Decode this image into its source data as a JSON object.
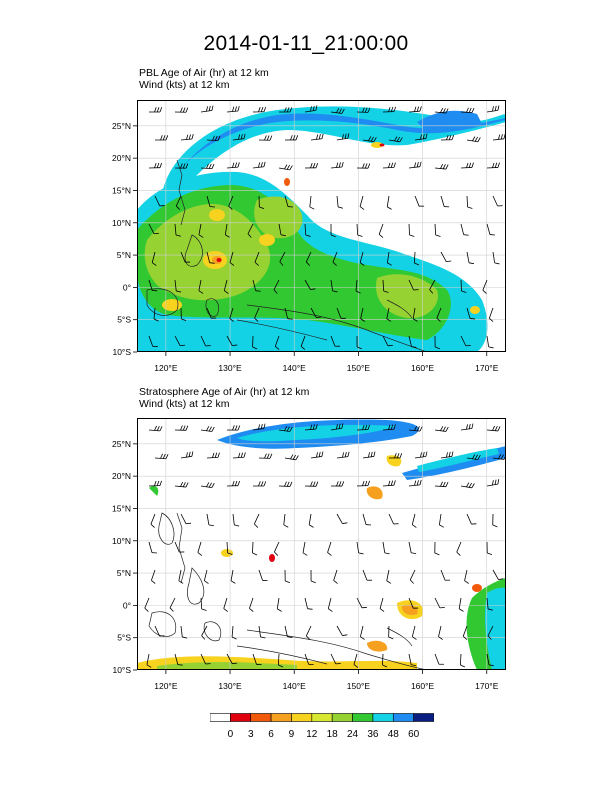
{
  "main_title": "2014-01-11_21:00:00",
  "panels": [
    {
      "id": "pbl",
      "title_line1": "PBL Age of Air   (hr)     at  12 km",
      "title_line2": "Wind   (kts)     at  12 km"
    },
    {
      "id": "strat",
      "title_line1": "Stratosphere Age of Air   (hr)     at  12 km",
      "title_line2": "Wind   (kts)     at  12 km"
    }
  ],
  "map": {
    "lon_ticks": [
      "120°E",
      "130°E",
      "140°E",
      "150°E",
      "160°E",
      "170°E"
    ],
    "lon_values": [
      120,
      130,
      140,
      150,
      160,
      170
    ],
    "lat_ticks": [
      "25°N",
      "20°N",
      "15°N",
      "10°N",
      "5°N",
      "0°",
      "5°S",
      "10°S"
    ],
    "lat_values": [
      25,
      20,
      15,
      10,
      5,
      0,
      -5,
      -10
    ],
    "lon_range": [
      115.5,
      173
    ],
    "lat_range": [
      -10,
      29
    ]
  },
  "colorbar": {
    "labels": [
      "0",
      "3",
      "6",
      "9",
      "12",
      "18",
      "24",
      "36",
      "48",
      "60"
    ],
    "colors": [
      "#ffffff",
      "#e0000f",
      "#f05a0a",
      "#f5a01e",
      "#f7d21e",
      "#d8e832",
      "#96d232",
      "#32c832",
      "#14d2e6",
      "#1e8cf0",
      "#0a1e82"
    ]
  }
}
